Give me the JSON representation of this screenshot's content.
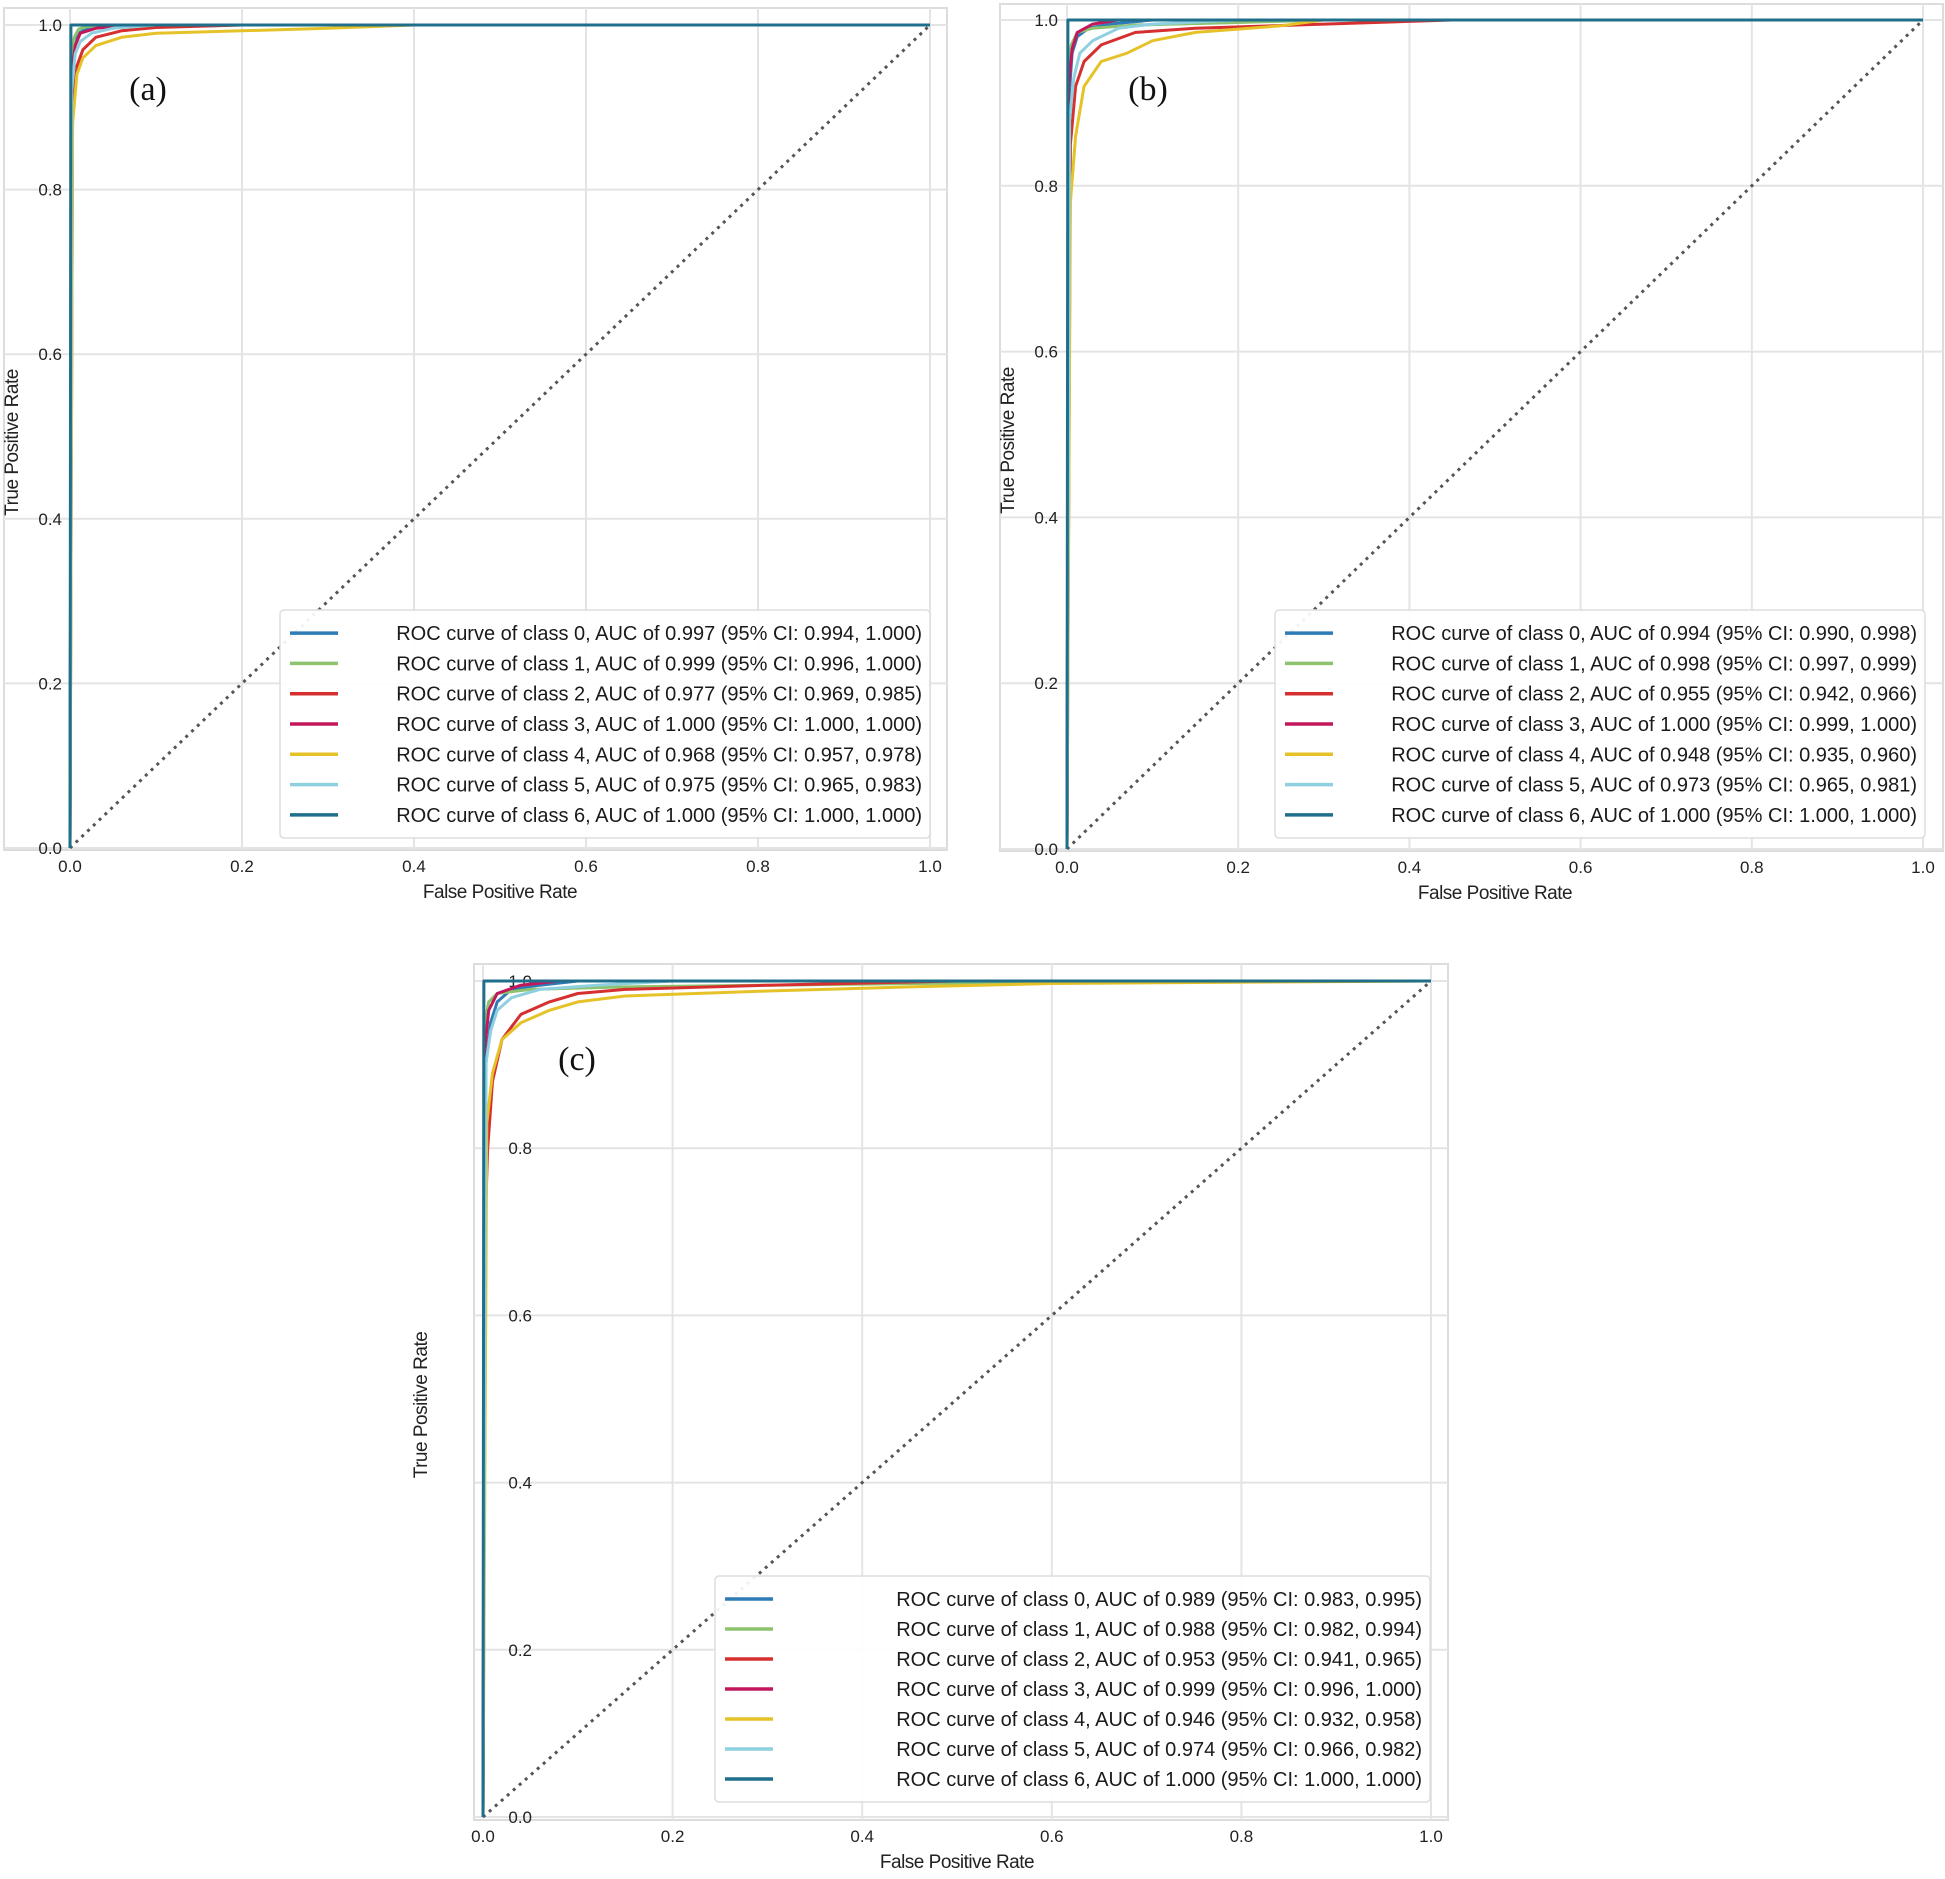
{
  "figure": {
    "panels": [
      "(a)",
      "(b)",
      "(c)"
    ]
  },
  "chart_data": [
    {
      "panel": "(a)",
      "type": "line",
      "xlabel": "False Positive Rate",
      "ylabel": "True Positive Rate",
      "xlim": [
        0,
        1
      ],
      "ylim": [
        0,
        1
      ],
      "xticks": [
        "0.0",
        "0.2",
        "0.4",
        "0.6",
        "0.8",
        "1.0"
      ],
      "yticks": [
        "0.0",
        "0.2",
        "0.4",
        "0.6",
        "0.8",
        "1.0"
      ],
      "grid": true,
      "legend_position": "lower-right",
      "series": [
        {
          "name": "ROC curve of class 0, AUC of 0.997 (95% CI: 0.994, 1.000)",
          "color": "#2f7bb6",
          "x": [
            0,
            0.002,
            0.005,
            0.01,
            0.02,
            0.04,
            0.1,
            1
          ],
          "y": [
            0,
            0.93,
            0.975,
            0.99,
            0.996,
            0.999,
            1,
            1
          ]
        },
        {
          "name": "ROC curve of class 1, AUC of 0.999 (95% CI: 0.996, 1.000)",
          "color": "#8dc26f",
          "x": [
            0,
            0.002,
            0.005,
            0.01,
            0.02,
            0.05,
            1
          ],
          "y": [
            0,
            0.96,
            0.985,
            0.995,
            0.998,
            1,
            1
          ]
        },
        {
          "name": "ROC curve of class 2, AUC of 0.977 (95% CI: 0.969, 0.985)",
          "color": "#d62f2f",
          "x": [
            0,
            0.003,
            0.008,
            0.015,
            0.03,
            0.06,
            0.1,
            0.2,
            1
          ],
          "y": [
            0,
            0.9,
            0.95,
            0.97,
            0.985,
            0.993,
            0.997,
            1,
            1
          ]
        },
        {
          "name": "ROC curve of class 3, AUC of 1.000 (95% CI: 1.000, 1.000)",
          "color": "#c2185b",
          "x": [
            0,
            0.002,
            0.006,
            0.012,
            0.03,
            0.07,
            1
          ],
          "y": [
            0,
            0.94,
            0.975,
            0.99,
            0.996,
            1,
            1
          ]
        },
        {
          "name": "ROC curve of class 4, AUC of 0.968 (95% CI: 0.957, 0.978)",
          "color": "#e6c229",
          "x": [
            0,
            0.003,
            0.008,
            0.015,
            0.03,
            0.06,
            0.1,
            0.2,
            0.3,
            0.4,
            1
          ],
          "y": [
            0,
            0.88,
            0.94,
            0.96,
            0.975,
            0.985,
            0.99,
            0.993,
            0.996,
            1,
            1
          ]
        },
        {
          "name": "ROC curve of class 5, AUC of 0.975 (95% CI: 0.965, 0.983)",
          "color": "#8ed0e0",
          "x": [
            0,
            0.002,
            0.006,
            0.012,
            0.025,
            0.05,
            0.1,
            1
          ],
          "y": [
            0,
            0.92,
            0.965,
            0.98,
            0.99,
            0.996,
            1,
            1
          ]
        },
        {
          "name": "ROC curve of class 6, AUC of 1.000 (95% CI: 1.000, 1.000)",
          "color": "#1f6f8b",
          "x": [
            0,
            0.001,
            1
          ],
          "y": [
            0,
            1,
            1
          ]
        }
      ]
    },
    {
      "panel": "(b)",
      "type": "line",
      "xlabel": "False Positive Rate",
      "ylabel": "True Positive Rate",
      "xlim": [
        0,
        1
      ],
      "ylim": [
        0,
        1
      ],
      "xticks": [
        "0.0",
        "0.2",
        "0.4",
        "0.6",
        "0.8",
        "1.0"
      ],
      "yticks": [
        "0.0",
        "0.2",
        "0.4",
        "0.6",
        "0.8",
        "1.0"
      ],
      "grid": true,
      "legend_position": "lower-right",
      "series": [
        {
          "name": "ROC curve of class 0, AUC of 0.994 (95% CI: 0.990, 0.998)",
          "color": "#2f7bb6",
          "x": [
            0,
            0.002,
            0.006,
            0.012,
            0.025,
            0.05,
            0.1,
            1
          ],
          "y": [
            0,
            0.9,
            0.96,
            0.98,
            0.99,
            0.995,
            1,
            1
          ]
        },
        {
          "name": "ROC curve of class 1, AUC of 0.998 (95% CI: 0.997, 0.999)",
          "color": "#8dc26f",
          "x": [
            0,
            0.002,
            0.005,
            0.012,
            0.03,
            0.08,
            0.2,
            0.3,
            1
          ],
          "y": [
            0,
            0.93,
            0.97,
            0.985,
            0.99,
            0.994,
            0.997,
            1,
            1
          ]
        },
        {
          "name": "ROC curve of class 2, AUC of 0.955 (95% CI: 0.942, 0.966)",
          "color": "#d62f2f",
          "x": [
            0,
            0.004,
            0.01,
            0.02,
            0.04,
            0.08,
            0.15,
            0.3,
            0.45,
            1
          ],
          "y": [
            0,
            0.85,
            0.92,
            0.95,
            0.97,
            0.985,
            0.99,
            0.995,
            1,
            1
          ]
        },
        {
          "name": "ROC curve of class 3, AUC of 1.000 (95% CI: 0.999, 1.000)",
          "color": "#c2185b",
          "x": [
            0,
            0.002,
            0.006,
            0.012,
            0.03,
            0.06,
            1
          ],
          "y": [
            0,
            0.92,
            0.965,
            0.985,
            0.995,
            1,
            1
          ]
        },
        {
          "name": "ROC curve of class 4, AUC of 0.948 (95% CI: 0.935, 0.960)",
          "color": "#e6c229",
          "x": [
            0,
            0.004,
            0.01,
            0.02,
            0.04,
            0.07,
            0.1,
            0.15,
            0.25,
            0.3,
            1
          ],
          "y": [
            0,
            0.78,
            0.86,
            0.92,
            0.95,
            0.96,
            0.975,
            0.985,
            0.993,
            1,
            1
          ]
        },
        {
          "name": "ROC curve of class 5, AUC of 0.973 (95% CI: 0.965, 0.981)",
          "color": "#8ed0e0",
          "x": [
            0,
            0.003,
            0.008,
            0.015,
            0.03,
            0.06,
            0.1,
            0.2,
            1
          ],
          "y": [
            0,
            0.88,
            0.93,
            0.96,
            0.975,
            0.99,
            0.995,
            1,
            1
          ]
        },
        {
          "name": "ROC curve of class 6, AUC of 1.000 (95% CI: 1.000, 1.000)",
          "color": "#1f6f8b",
          "x": [
            0,
            0.001,
            1
          ],
          "y": [
            0,
            1,
            1
          ]
        }
      ]
    },
    {
      "panel": "(c)",
      "type": "line",
      "xlabel": "False Positive Rate",
      "ylabel": "True Positive Rate",
      "xlim": [
        0,
        1
      ],
      "ylim": [
        0,
        1
      ],
      "xticks": [
        "0.0",
        "0.2",
        "0.4",
        "0.6",
        "0.8",
        "1.0"
      ],
      "yticks": [
        "0.0",
        "0.2",
        "0.4",
        "0.6",
        "0.8",
        "1.0"
      ],
      "grid": true,
      "legend_position": "lower-right",
      "series": [
        {
          "name": "ROC curve of class 0, AUC of 0.989 (95% CI: 0.983, 0.995)",
          "color": "#2f7bb6",
          "x": [
            0,
            0.003,
            0.008,
            0.015,
            0.03,
            0.06,
            0.1,
            1
          ],
          "y": [
            0,
            0.9,
            0.95,
            0.975,
            0.99,
            0.995,
            1,
            1
          ]
        },
        {
          "name": "ROC curve of class 1, AUC of 0.988 (95% CI: 0.982, 0.994)",
          "color": "#8dc26f",
          "x": [
            0,
            0.002,
            0.006,
            0.015,
            0.05,
            0.15,
            0.3,
            0.45,
            0.6,
            0.8,
            1
          ],
          "y": [
            0,
            0.95,
            0.975,
            0.985,
            0.99,
            0.993,
            0.995,
            0.997,
            0.998,
            1,
            1
          ]
        },
        {
          "name": "ROC curve of class 2, AUC of 0.953 (95% CI: 0.941, 0.965)",
          "color": "#d62f2f",
          "x": [
            0,
            0.002,
            0.005,
            0.01,
            0.02,
            0.04,
            0.07,
            0.1,
            0.15,
            0.3,
            0.5,
            1
          ],
          "y": [
            0,
            0.7,
            0.8,
            0.88,
            0.93,
            0.96,
            0.975,
            0.985,
            0.99,
            0.995,
            1,
            1
          ]
        },
        {
          "name": "ROC curve of class 3, AUC of 0.999 (95% CI: 0.996, 1.000)",
          "color": "#c2185b",
          "x": [
            0,
            0.002,
            0.006,
            0.015,
            0.04,
            0.08,
            1
          ],
          "y": [
            0,
            0.92,
            0.965,
            0.985,
            0.995,
            1,
            1
          ]
        },
        {
          "name": "ROC curve of class 4, AUC of 0.946 (95% CI: 0.932, 0.958)",
          "color": "#e6c229",
          "x": [
            0,
            0.004,
            0.01,
            0.02,
            0.04,
            0.07,
            0.1,
            0.15,
            0.3,
            0.45,
            0.6,
            1
          ],
          "y": [
            0,
            0.83,
            0.89,
            0.93,
            0.95,
            0.965,
            0.975,
            0.982,
            0.988,
            0.993,
            0.997,
            1
          ]
        },
        {
          "name": "ROC curve of class 5, AUC of 0.974 (95% CI: 0.966, 0.982)",
          "color": "#8ed0e0",
          "x": [
            0,
            0.003,
            0.008,
            0.015,
            0.03,
            0.06,
            0.12,
            0.2,
            1
          ],
          "y": [
            0,
            0.9,
            0.94,
            0.965,
            0.98,
            0.99,
            0.995,
            1,
            1
          ]
        },
        {
          "name": "ROC curve of class 6, AUC of 1.000 (95% CI: 1.000, 1.000)",
          "color": "#1f6f8b",
          "x": [
            0,
            0.001,
            1
          ],
          "y": [
            0,
            1,
            1
          ]
        }
      ]
    }
  ]
}
